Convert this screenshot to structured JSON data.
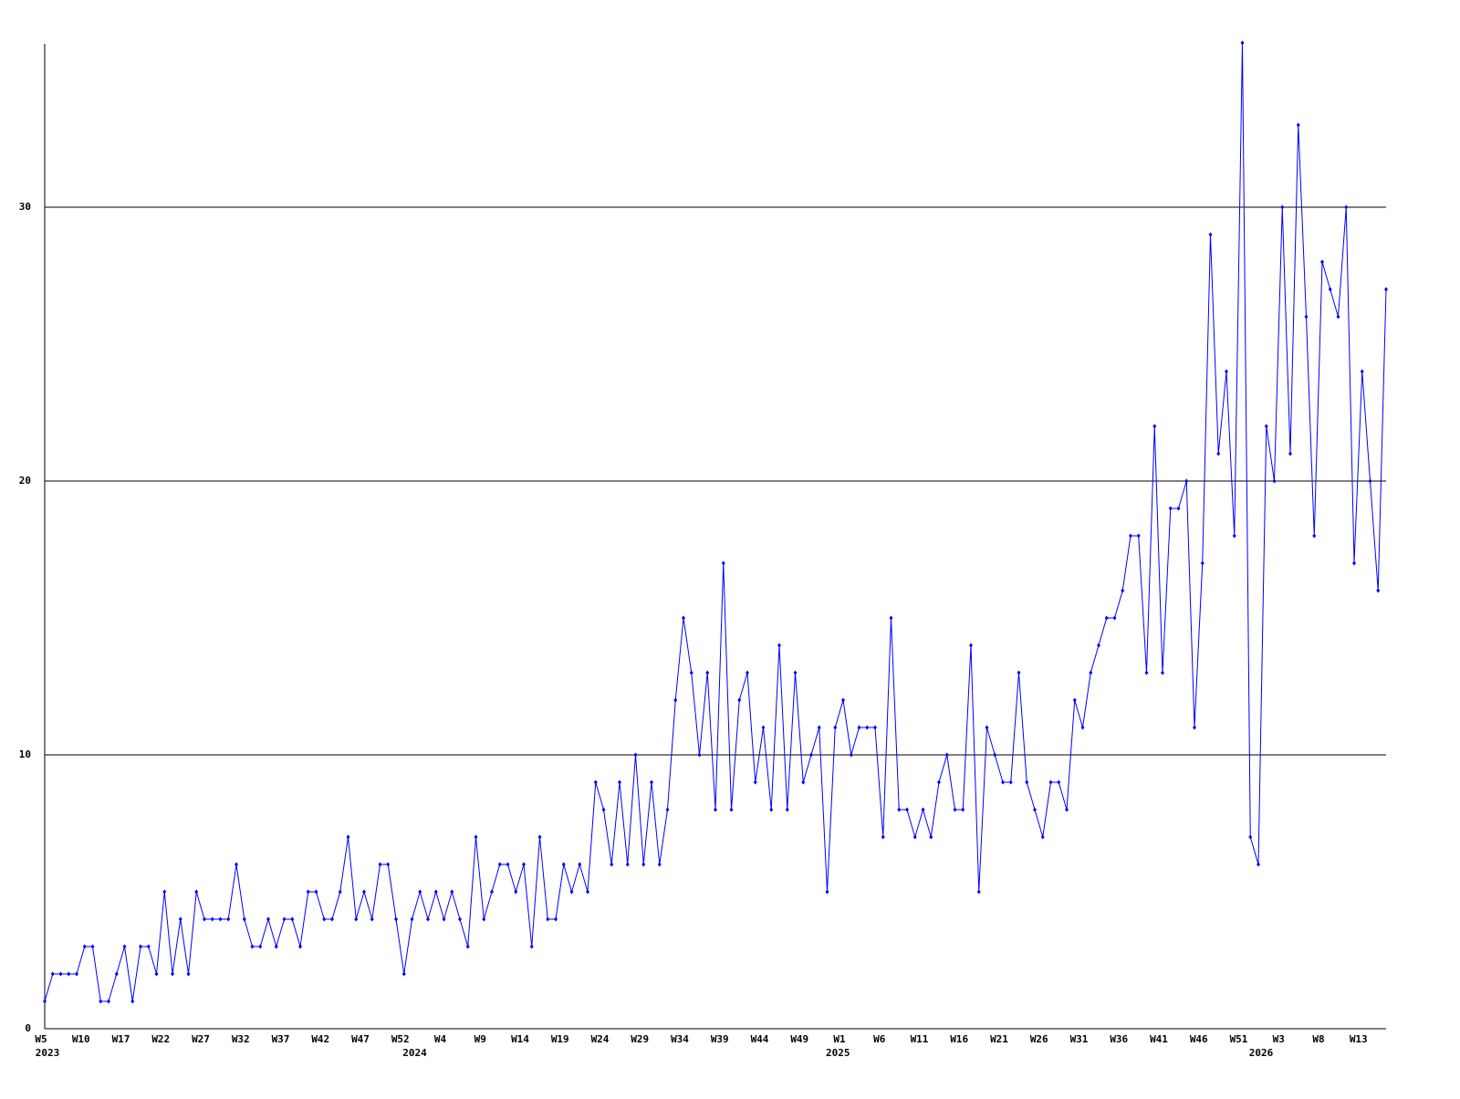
{
  "chart_data": {
    "type": "line",
    "categories": [
      "W5",
      null,
      null,
      null,
      null,
      "W10",
      null,
      null,
      null,
      null,
      "W17",
      null,
      null,
      null,
      null,
      "W22",
      null,
      null,
      null,
      null,
      "W27",
      null,
      null,
      null,
      null,
      "W32",
      null,
      null,
      null,
      null,
      "W37",
      null,
      null,
      null,
      null,
      "W42",
      null,
      null,
      null,
      null,
      "W47",
      null,
      null,
      null,
      null,
      "W52",
      null,
      null,
      null,
      null,
      "W4",
      null,
      null,
      null,
      null,
      "W9",
      null,
      null,
      null,
      null,
      "W14",
      null,
      null,
      null,
      null,
      "W19",
      null,
      null,
      null,
      null,
      "W24",
      null,
      null,
      null,
      null,
      "W29",
      null,
      null,
      null,
      null,
      "W34",
      null,
      null,
      null,
      null,
      "W39",
      null,
      null,
      null,
      null,
      "W44",
      null,
      null,
      null,
      null,
      "W49",
      null,
      null,
      null,
      null,
      "W1",
      null,
      null,
      null,
      null,
      "W6",
      null,
      null,
      null,
      null,
      "W11",
      null,
      null,
      null,
      null,
      "W16",
      null,
      null,
      null,
      null,
      "W21",
      null,
      null,
      null,
      null,
      "W26",
      null,
      null,
      null,
      null,
      "W31",
      null,
      null,
      null,
      null,
      "W36",
      null,
      null,
      null,
      null,
      "W41",
      null,
      null,
      null,
      null,
      "W46",
      null,
      null,
      null,
      null,
      "W51",
      null,
      null,
      null,
      null,
      "W3",
      null,
      null,
      null,
      null,
      "W8",
      null,
      null,
      null,
      null,
      "W13",
      null,
      null,
      null
    ],
    "year_categories": [
      "2023",
      null,
      null,
      null,
      null,
      null,
      null,
      null,
      null,
      null,
      null,
      null,
      null,
      null,
      null,
      null,
      null,
      null,
      null,
      null,
      null,
      null,
      null,
      null,
      null,
      null,
      null,
      null,
      null,
      null,
      null,
      null,
      null,
      null,
      null,
      null,
      null,
      null,
      null,
      null,
      null,
      null,
      null,
      null,
      null,
      null,
      "2024",
      null,
      null,
      null,
      null,
      null,
      null,
      null,
      null,
      null,
      null,
      null,
      null,
      null,
      null,
      null,
      null,
      null,
      null,
      null,
      null,
      null,
      null,
      null,
      null,
      null,
      null,
      null,
      null,
      null,
      null,
      null,
      null,
      null,
      null,
      null,
      null,
      null,
      null,
      null,
      null,
      null,
      null,
      null,
      null,
      null,
      null,
      null,
      null,
      null,
      null,
      null,
      null,
      "2025",
      null,
      null,
      null,
      null,
      null,
      null,
      null,
      null,
      null,
      null,
      null,
      null,
      null,
      null,
      null,
      null,
      null,
      null,
      null,
      null,
      null,
      null,
      null,
      null,
      null,
      null,
      null,
      null,
      null,
      null,
      null,
      null,
      null,
      null,
      null,
      null,
      null,
      null,
      null,
      null,
      null,
      null,
      null,
      null,
      null,
      null,
      null,
      null,
      null,
      null,
      null,
      null,
      "2026",
      null,
      null,
      null,
      null,
      null,
      null,
      null,
      null,
      null,
      null,
      null,
      null,
      null,
      null,
      null,
      null
    ],
    "series": [
      {
        "color": "#0000ff",
        "values": [
          1,
          2,
          2,
          2,
          2,
          3,
          3,
          1,
          1,
          2,
          3,
          1,
          3,
          3,
          2,
          5,
          2,
          4,
          2,
          5,
          4,
          4,
          4,
          4,
          6,
          4,
          3,
          3,
          4,
          3,
          4,
          4,
          3,
          5,
          5,
          4,
          4,
          5,
          7,
          4,
          5,
          4,
          6,
          6,
          4,
          2,
          4,
          5,
          4,
          5,
          4,
          5,
          4,
          3,
          7,
          4,
          5,
          6,
          6,
          5,
          6,
          3,
          7,
          4,
          4,
          6,
          5,
          6,
          5,
          9,
          8,
          6,
          9,
          6,
          10,
          6,
          9,
          6,
          8,
          12,
          15,
          13,
          10,
          13,
          8,
          17,
          8,
          12,
          13,
          9,
          11,
          8,
          14,
          8,
          13,
          9,
          10,
          11,
          5,
          11,
          12,
          10,
          11,
          11,
          11,
          7,
          15,
          8,
          8,
          7,
          8,
          7,
          9,
          10,
          8,
          8,
          14,
          5,
          11,
          10,
          9,
          9,
          13,
          9,
          8,
          7,
          9,
          9,
          8,
          12,
          11,
          13,
          14,
          15,
          15,
          16,
          18,
          18,
          13,
          22,
          13,
          19,
          19,
          20,
          11,
          17,
          29,
          21,
          24,
          18,
          36,
          7,
          6,
          22,
          20,
          30,
          21,
          33,
          26,
          18,
          28,
          27,
          26,
          30,
          17,
          24,
          20,
          16,
          27
        ]
      }
    ],
    "ylim": [
      0,
      36
    ],
    "yticks": [
      0,
      10,
      20,
      30
    ],
    "grid": true
  }
}
